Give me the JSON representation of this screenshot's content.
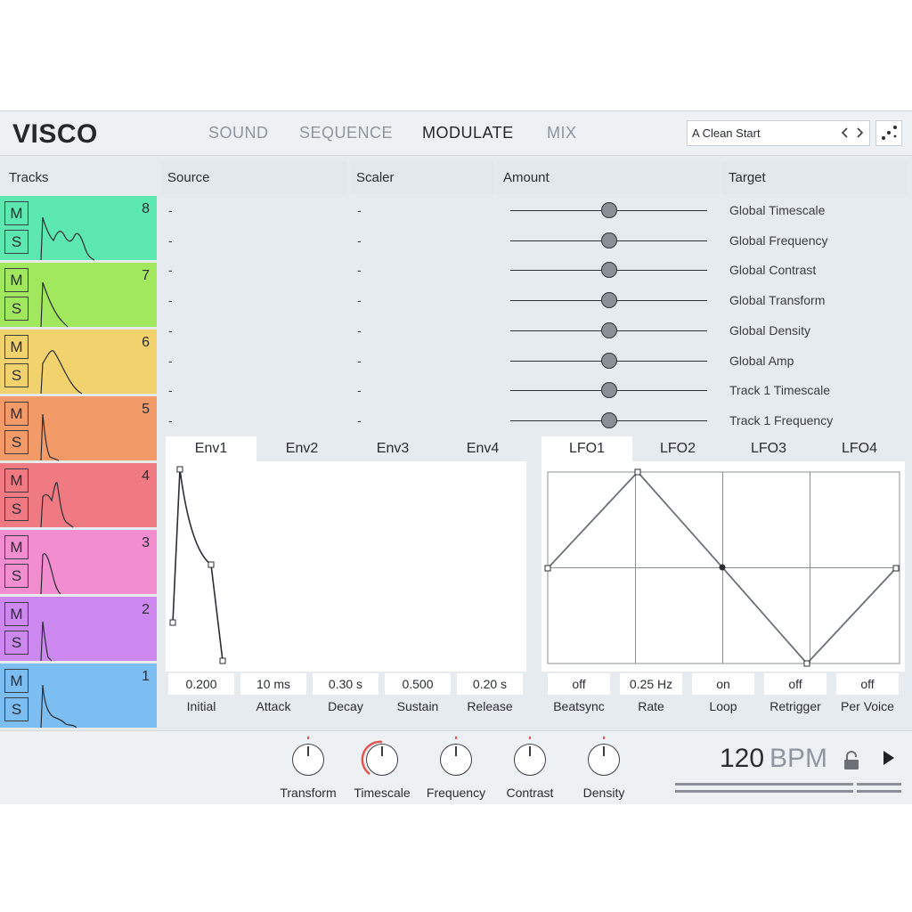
{
  "app": {
    "logo": "VISCO"
  },
  "nav": {
    "tabs": [
      "SOUND",
      "SEQUENCE",
      "MODULATE",
      "MIX"
    ],
    "active": "MODULATE"
  },
  "preset": {
    "name": "A Clean Start",
    "prev_icon": "chevron-left-icon",
    "next_icon": "chevron-right-icon",
    "menu_icon": "dots-icon"
  },
  "tracks": {
    "title": "Tracks",
    "mute_label": "M",
    "solo_label": "S",
    "items": [
      {
        "number": "8",
        "color": "#5ce8b0"
      },
      {
        "number": "7",
        "color": "#a2e85e"
      },
      {
        "number": "6",
        "color": "#f2d26c"
      },
      {
        "number": "5",
        "color": "#f29a68"
      },
      {
        "number": "4",
        "color": "#f07a82"
      },
      {
        "number": "3",
        "color": "#f28ed0"
      },
      {
        "number": "2",
        "color": "#cc88ee"
      },
      {
        "number": "1",
        "color": "#7cbef2"
      }
    ]
  },
  "matrix": {
    "headers": {
      "source": "Source",
      "scaler": "Scaler",
      "amount": "Amount",
      "target": "Target"
    },
    "rows": [
      {
        "source": "-",
        "scaler": "-",
        "amount": 0.5,
        "target": "Global Timescale"
      },
      {
        "source": "-",
        "scaler": "-",
        "amount": 0.5,
        "target": "Global Frequency"
      },
      {
        "source": "-",
        "scaler": "-",
        "amount": 0.5,
        "target": "Global Contrast"
      },
      {
        "source": "-",
        "scaler": "-",
        "amount": 0.5,
        "target": "Global Transform"
      },
      {
        "source": "-",
        "scaler": "-",
        "amount": 0.5,
        "target": "Global Density"
      },
      {
        "source": "-",
        "scaler": "-",
        "amount": 0.5,
        "target": "Global Amp"
      },
      {
        "source": "-",
        "scaler": "-",
        "amount": 0.5,
        "target": "Track 1 Timescale"
      },
      {
        "source": "-",
        "scaler": "-",
        "amount": 0.5,
        "target": "Track 1 Frequency"
      }
    ]
  },
  "envelope": {
    "tabs": [
      "Env1",
      "Env2",
      "Env3",
      "Env4"
    ],
    "active": "Env1",
    "params": [
      {
        "value": "0.200",
        "label": "Initial"
      },
      {
        "value": "10 ms",
        "label": "Attack"
      },
      {
        "value": "0.30 s",
        "label": "Decay"
      },
      {
        "value": "0.500",
        "label": "Sustain"
      },
      {
        "value": "0.20 s",
        "label": "Release"
      }
    ]
  },
  "lfo": {
    "tabs": [
      "LFO1",
      "LFO2",
      "LFO3",
      "LFO4"
    ],
    "active": "LFO1",
    "params": [
      {
        "value": "off",
        "label": "Beatsync"
      },
      {
        "value": "0.25 Hz",
        "label": "Rate"
      },
      {
        "value": "on",
        "label": "Loop"
      },
      {
        "value": "off",
        "label": "Retrigger"
      },
      {
        "value": "off",
        "label": "Per Voice"
      }
    ]
  },
  "footer": {
    "knobs": [
      {
        "label": "Transform",
        "active": false
      },
      {
        "label": "Timescale",
        "active": true
      },
      {
        "label": "Frequency",
        "active": false
      },
      {
        "label": "Contrast",
        "active": false
      },
      {
        "label": "Density",
        "active": false
      }
    ],
    "bpm": {
      "value": "120",
      "unit": "BPM"
    },
    "lock_icon": "lock-icon",
    "play_icon": "play-icon",
    "accent_color": "#e0554f"
  }
}
